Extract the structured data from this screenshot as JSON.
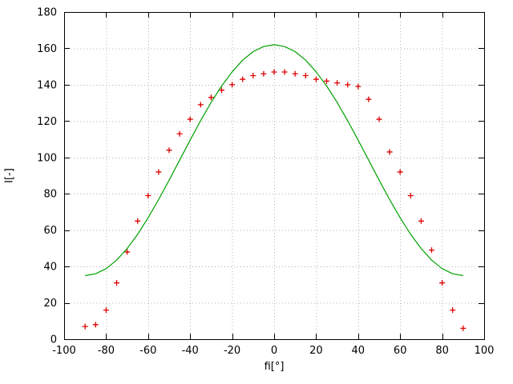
{
  "chart_data": {
    "type": "scatter",
    "title": "",
    "xlabel": "fi[°]",
    "ylabel": "I[-]",
    "xlim": [
      -100,
      100
    ],
    "ylim": [
      0,
      180
    ],
    "xticks": [
      -100,
      -80,
      -60,
      -40,
      -20,
      0,
      20,
      40,
      60,
      80,
      100
    ],
    "yticks": [
      0,
      20,
      40,
      60,
      80,
      100,
      120,
      140,
      160,
      180
    ],
    "grid": true,
    "legend": "none",
    "colors": {
      "points": "#dd0000",
      "line": "#00a000",
      "grid": "#b4b4b4",
      "axis": "#000000"
    },
    "series": [
      {
        "name": "measured-points",
        "type": "scatter",
        "marker": "plus",
        "points": [
          [
            -90,
            7
          ],
          [
            -85,
            8
          ],
          [
            -80,
            16
          ],
          [
            -75,
            31
          ],
          [
            -70,
            48
          ],
          [
            -65,
            65
          ],
          [
            -60,
            79
          ],
          [
            -55,
            92
          ],
          [
            -50,
            104
          ],
          [
            -45,
            113
          ],
          [
            -40,
            121
          ],
          [
            -35,
            129
          ],
          [
            -30,
            133
          ],
          [
            -25,
            137
          ],
          [
            -20,
            140
          ],
          [
            -15,
            143
          ],
          [
            -10,
            145
          ],
          [
            -5,
            146
          ],
          [
            0,
            147
          ],
          [
            5,
            147
          ],
          [
            10,
            146
          ],
          [
            15,
            145
          ],
          [
            20,
            143
          ],
          [
            25,
            142
          ],
          [
            30,
            141
          ],
          [
            35,
            140
          ],
          [
            40,
            139
          ],
          [
            45,
            132
          ],
          [
            50,
            121
          ],
          [
            55,
            103
          ],
          [
            60,
            92
          ],
          [
            65,
            79
          ],
          [
            70,
            65
          ],
          [
            75,
            49
          ],
          [
            80,
            31
          ],
          [
            85,
            16
          ],
          [
            90,
            6
          ]
        ]
      },
      {
        "name": "model-curve",
        "type": "line",
        "points": [
          [
            -90,
            35
          ],
          [
            -85,
            36
          ],
          [
            -80,
            38.8
          ],
          [
            -75,
            43.5
          ],
          [
            -70,
            49.9
          ],
          [
            -65,
            57.7
          ],
          [
            -60,
            66.8
          ],
          [
            -55,
            76.8
          ],
          [
            -50,
            87.5
          ],
          [
            -45,
            98.5
          ],
          [
            -40,
            109.5
          ],
          [
            -35,
            120.2
          ],
          [
            -30,
            130.3
          ],
          [
            -25,
            139.3
          ],
          [
            -20,
            147.1
          ],
          [
            -15,
            153.5
          ],
          [
            -10,
            158.2
          ],
          [
            -5,
            161.0
          ],
          [
            0,
            162.0
          ],
          [
            5,
            161.0
          ],
          [
            10,
            158.2
          ],
          [
            15,
            153.5
          ],
          [
            20,
            147.1
          ],
          [
            25,
            139.3
          ],
          [
            30,
            130.3
          ],
          [
            35,
            120.2
          ],
          [
            40,
            109.5
          ],
          [
            45,
            98.5
          ],
          [
            50,
            87.5
          ],
          [
            55,
            76.8
          ],
          [
            60,
            66.8
          ],
          [
            65,
            57.7
          ],
          [
            70,
            49.9
          ],
          [
            75,
            43.5
          ],
          [
            80,
            38.8
          ],
          [
            85,
            36
          ],
          [
            90,
            35
          ]
        ]
      }
    ]
  }
}
